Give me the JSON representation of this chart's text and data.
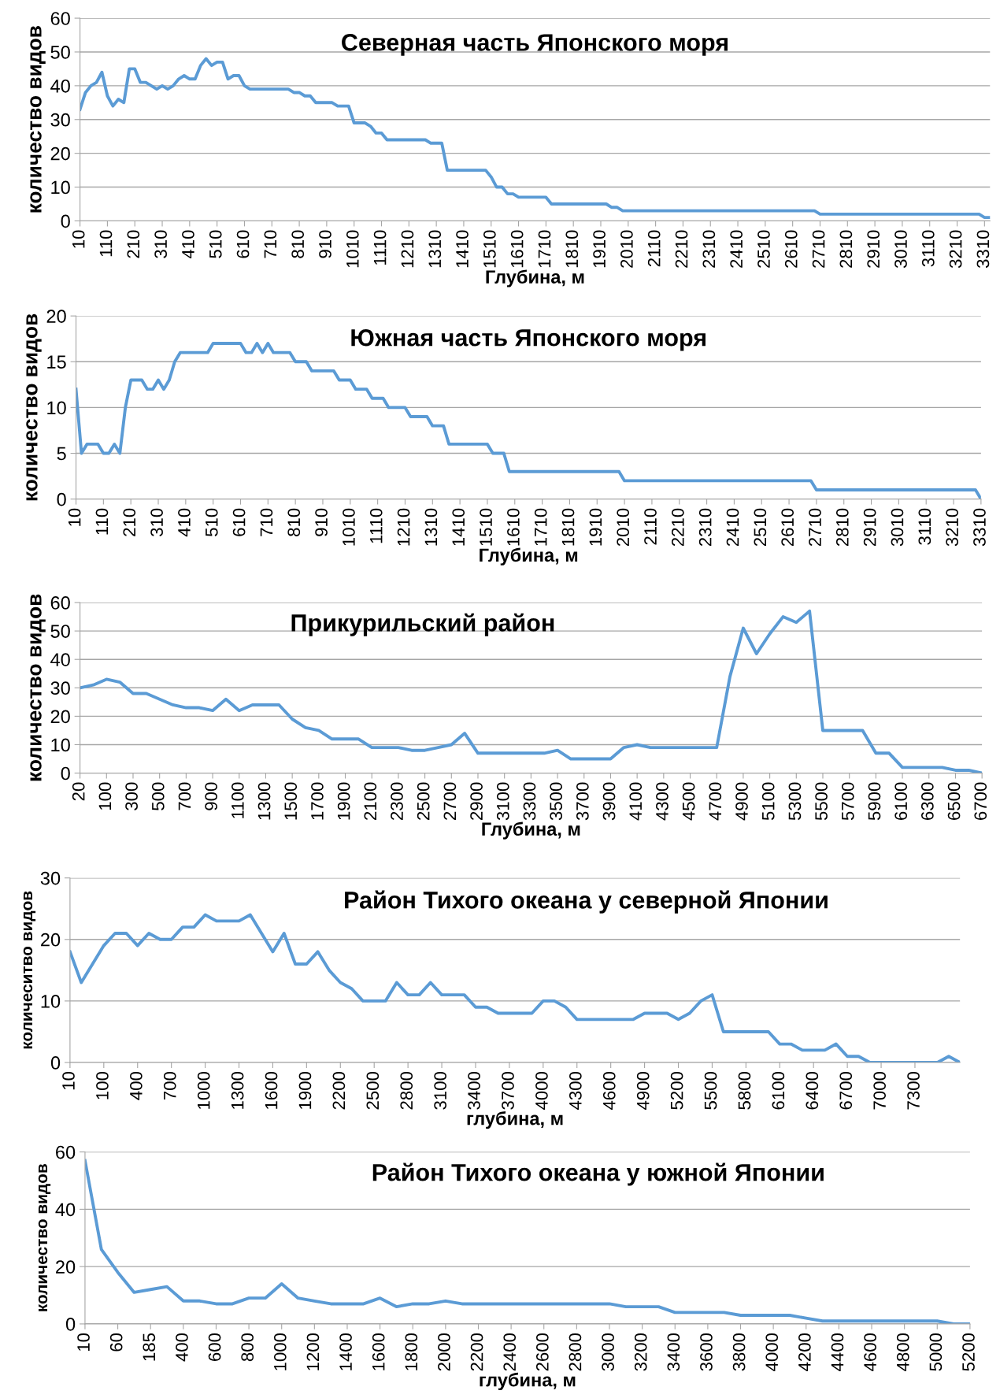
{
  "chart_data": [
    {
      "type": "line",
      "title": "Северная часть Японского моря",
      "xlabel": "Глубина, м",
      "ylabel": "количество видов",
      "ylim": [
        0,
        60
      ],
      "yticks": [
        0,
        10,
        20,
        30,
        40,
        50,
        60
      ],
      "grid": "y",
      "marker": "none",
      "line_style": "solid",
      "categories": [
        "10",
        null,
        null,
        null,
        null,
        "110",
        null,
        null,
        null,
        null,
        "210",
        null,
        null,
        null,
        null,
        "310",
        null,
        null,
        null,
        null,
        "410",
        null,
        null,
        null,
        null,
        "510",
        null,
        null,
        null,
        null,
        "610",
        null,
        null,
        null,
        null,
        "710",
        null,
        null,
        null,
        null,
        "810",
        null,
        null,
        null,
        null,
        "910",
        null,
        null,
        null,
        null,
        "1010",
        null,
        null,
        null,
        null,
        "1110",
        null,
        null,
        null,
        null,
        "1210",
        null,
        null,
        null,
        null,
        "1310",
        null,
        null,
        null,
        null,
        "1410",
        null,
        null,
        null,
        null,
        "1510",
        null,
        null,
        null,
        null,
        "1610",
        null,
        null,
        null,
        null,
        "1710",
        null,
        null,
        null,
        null,
        "1810",
        null,
        null,
        null,
        null,
        "1910",
        null,
        null,
        null,
        null,
        "2010",
        null,
        null,
        null,
        null,
        "2110",
        null,
        null,
        null,
        null,
        "2210",
        null,
        null,
        null,
        null,
        "2310",
        null,
        null,
        null,
        null,
        "2410",
        null,
        null,
        null,
        null,
        "2510",
        null,
        null,
        null,
        null,
        "2610",
        null,
        null,
        null,
        null,
        "2710",
        null,
        null,
        null,
        null,
        "2810",
        null,
        null,
        null,
        null,
        "2910",
        null,
        null,
        null,
        null,
        "3010",
        null,
        null,
        null,
        null,
        "3110",
        null,
        null,
        null,
        null,
        "3210",
        null,
        null,
        null,
        null,
        "3310",
        null
      ],
      "series": [
        {
          "color": "#5b9bd5",
          "values": [
            33,
            38,
            40,
            41,
            44,
            37,
            34,
            36,
            35,
            45,
            45,
            41,
            41,
            40,
            39,
            40,
            39,
            40,
            42,
            43,
            42,
            42,
            46,
            48,
            46,
            47,
            47,
            42,
            43,
            43,
            40,
            39,
            39,
            39,
            39,
            39,
            39,
            39,
            39,
            38,
            38,
            37,
            37,
            35,
            35,
            35,
            35,
            34,
            34,
            34,
            29,
            29,
            29,
            28,
            26,
            26,
            24,
            24,
            24,
            24,
            24,
            24,
            24,
            24,
            23,
            23,
            23,
            15,
            15,
            15,
            15,
            15,
            15,
            15,
            15,
            13,
            10,
            10,
            8,
            8,
            7,
            7,
            7,
            7,
            7,
            7,
            5,
            5,
            5,
            5,
            5,
            5,
            5,
            5,
            5,
            5,
            5,
            4,
            4,
            3,
            3,
            3,
            3,
            3,
            3,
            3,
            3,
            3,
            3,
            3,
            3,
            3,
            3,
            3,
            3,
            3,
            3,
            3,
            3,
            3,
            3,
            3,
            3,
            3,
            3,
            3,
            3,
            3,
            3,
            3,
            3,
            3,
            3,
            3,
            3,
            2,
            2,
            2,
            2,
            2,
            2,
            2,
            2,
            2,
            2,
            2,
            2,
            2,
            2,
            2,
            2,
            2,
            2,
            2,
            2,
            2,
            2,
            2,
            2,
            2,
            2,
            2,
            2,
            2,
            2,
            1,
            1
          ]
        }
      ]
    },
    {
      "type": "line",
      "title": "Южная часть Японского моря",
      "xlabel": "Глубина, м",
      "ylabel": "количество видов",
      "ylim": [
        0,
        20
      ],
      "yticks": [
        0,
        5,
        10,
        15,
        20
      ],
      "grid": "y",
      "marker": "none",
      "line_style": "solid",
      "categories": [
        "10",
        null,
        null,
        null,
        null,
        "110",
        null,
        null,
        null,
        null,
        "210",
        null,
        null,
        null,
        null,
        "310",
        null,
        null,
        null,
        null,
        "410",
        null,
        null,
        null,
        null,
        "510",
        null,
        null,
        null,
        null,
        "610",
        null,
        null,
        null,
        null,
        "710",
        null,
        null,
        null,
        null,
        "810",
        null,
        null,
        null,
        null,
        "910",
        null,
        null,
        null,
        null,
        "1010",
        null,
        null,
        null,
        null,
        "1110",
        null,
        null,
        null,
        null,
        "1210",
        null,
        null,
        null,
        null,
        "1310",
        null,
        null,
        null,
        null,
        "1410",
        null,
        null,
        null,
        null,
        "1510",
        null,
        null,
        null,
        null,
        "1610",
        null,
        null,
        null,
        null,
        "1710",
        null,
        null,
        null,
        null,
        "1810",
        null,
        null,
        null,
        null,
        "1910",
        null,
        null,
        null,
        null,
        "2010",
        null,
        null,
        null,
        null,
        "2110",
        null,
        null,
        null,
        null,
        "2210",
        null,
        null,
        null,
        null,
        "2310",
        null,
        null,
        null,
        null,
        "2410",
        null,
        null,
        null,
        null,
        "2510",
        null,
        null,
        null,
        null,
        "2610",
        null,
        null,
        null,
        null,
        "2710",
        null,
        null,
        null,
        null,
        "2810",
        null,
        null,
        null,
        null,
        "2910",
        null,
        null,
        null,
        null,
        "3010",
        null,
        null,
        null,
        null,
        "3110",
        null,
        null,
        null,
        null,
        "3210",
        null,
        null,
        null,
        null,
        "3310"
      ],
      "series": [
        {
          "color": "#5b9bd5",
          "values": [
            12,
            5,
            6,
            6,
            6,
            5,
            5,
            6,
            5,
            10,
            13,
            13,
            13,
            12,
            12,
            13,
            12,
            13,
            15,
            16,
            16,
            16,
            16,
            16,
            16,
            17,
            17,
            17,
            17,
            17,
            17,
            16,
            16,
            17,
            16,
            17,
            16,
            16,
            16,
            16,
            15,
            15,
            15,
            14,
            14,
            14,
            14,
            14,
            13,
            13,
            13,
            12,
            12,
            12,
            11,
            11,
            11,
            10,
            10,
            10,
            10,
            9,
            9,
            9,
            9,
            8,
            8,
            8,
            6,
            6,
            6,
            6,
            6,
            6,
            6,
            6,
            5,
            5,
            5,
            3,
            3,
            3,
            3,
            3,
            3,
            3,
            3,
            3,
            3,
            3,
            3,
            3,
            3,
            3,
            3,
            3,
            3,
            3,
            3,
            3,
            2,
            2,
            2,
            2,
            2,
            2,
            2,
            2,
            2,
            2,
            2,
            2,
            2,
            2,
            2,
            2,
            2,
            2,
            2,
            2,
            2,
            2,
            2,
            2,
            2,
            2,
            2,
            2,
            2,
            2,
            2,
            2,
            2,
            2,
            2,
            1,
            1,
            1,
            1,
            1,
            1,
            1,
            1,
            1,
            1,
            1,
            1,
            1,
            1,
            1,
            1,
            1,
            1,
            1,
            1,
            1,
            1,
            1,
            1,
            1,
            1,
            1,
            1,
            1,
            1,
            0
          ]
        }
      ]
    },
    {
      "type": "line",
      "title": "Прикурильский район",
      "xlabel": "Глубина, м",
      "ylabel": "количество видов",
      "ylim": [
        0,
        60
      ],
      "yticks": [
        0,
        10,
        20,
        30,
        40,
        50,
        60
      ],
      "grid": "y",
      "marker": "none",
      "line_style": "solid",
      "categories": [
        "20",
        null,
        "100",
        null,
        "300",
        null,
        "500",
        null,
        "700",
        null,
        "900",
        null,
        "1100",
        null,
        "1300",
        null,
        "1500",
        null,
        "1700",
        null,
        "1900",
        null,
        "2100",
        null,
        "2300",
        null,
        "2500",
        null,
        "2700",
        null,
        "2900",
        null,
        "3100",
        null,
        "3300",
        null,
        "3500",
        null,
        "3700",
        null,
        "3900",
        null,
        "4100",
        null,
        "4300",
        null,
        "4500",
        null,
        "4700",
        null,
        "4900",
        null,
        "5100",
        null,
        "5300",
        null,
        "5500",
        null,
        "5700",
        null,
        "5900",
        null,
        "6100",
        null,
        "6300",
        null,
        "6500",
        null,
        "6700"
      ],
      "series": [
        {
          "color": "#5b9bd5",
          "values": [
            30,
            31,
            33,
            32,
            28,
            28,
            26,
            24,
            23,
            23,
            22,
            26,
            22,
            24,
            24,
            24,
            19,
            16,
            15,
            12,
            12,
            12,
            9,
            9,
            9,
            8,
            8,
            9,
            10,
            14,
            7,
            7,
            7,
            7,
            7,
            7,
            8,
            5,
            5,
            5,
            5,
            9,
            10,
            9,
            9,
            9,
            9,
            9,
            9,
            34,
            51,
            42,
            49,
            55,
            53,
            57,
            15,
            15,
            15,
            15,
            7,
            7,
            2,
            2,
            2,
            2,
            1,
            1,
            0
          ]
        }
      ]
    },
    {
      "type": "line",
      "title": "Район Тихого океана у северной Японии",
      "xlabel": "глубина, м",
      "ylabel": "количеситво видов",
      "ylim": [
        0,
        30
      ],
      "yticks": [
        0,
        10,
        20,
        30
      ],
      "grid": "y",
      "marker": "none",
      "line_style": "solid",
      "categories": [
        "10",
        null,
        null,
        "100",
        null,
        null,
        "400",
        null,
        null,
        "700",
        null,
        null,
        "1000",
        null,
        null,
        "1300",
        null,
        null,
        "1600",
        null,
        null,
        "1900",
        null,
        null,
        "2200",
        null,
        null,
        "2500",
        null,
        null,
        "2800",
        null,
        null,
        "3100",
        null,
        null,
        "3400",
        null,
        null,
        "3700",
        null,
        null,
        "4000",
        null,
        null,
        "4300",
        null,
        null,
        "4600",
        null,
        null,
        "4900",
        null,
        null,
        "5200",
        null,
        null,
        "5500",
        null,
        null,
        "5800",
        null,
        null,
        "6100",
        null,
        null,
        "6400",
        null,
        null,
        "6700",
        null,
        null,
        "7000",
        null,
        null,
        "7300",
        null,
        null,
        null,
        null
      ],
      "series": [
        {
          "color": "#5b9bd5",
          "values": [
            18,
            13,
            16,
            19,
            21,
            21,
            19,
            21,
            20,
            20,
            22,
            22,
            24,
            23,
            23,
            23,
            24,
            21,
            18,
            21,
            16,
            16,
            18,
            15,
            13,
            12,
            10,
            10,
            10,
            13,
            11,
            11,
            13,
            11,
            11,
            11,
            9,
            9,
            8,
            8,
            8,
            8,
            10,
            10,
            9,
            7,
            7,
            7,
            7,
            7,
            7,
            8,
            8,
            8,
            7,
            8,
            10,
            11,
            5,
            5,
            5,
            5,
            5,
            3,
            3,
            2,
            2,
            2,
            3,
            1,
            1,
            0,
            0,
            0,
            0,
            0,
            0,
            0,
            1,
            0
          ]
        }
      ]
    },
    {
      "type": "line",
      "title": "Район Тихого океана у южной Японии",
      "xlabel": "глубина, м",
      "ylabel": "количество видов",
      "ylim": [
        0,
        60
      ],
      "yticks": [
        0,
        20,
        40,
        60
      ],
      "grid": "y",
      "marker": "none",
      "line_style": "solid",
      "categories": [
        "10",
        null,
        "60",
        null,
        "185",
        null,
        "400",
        null,
        "600",
        null,
        "800",
        null,
        "1000",
        null,
        "1200",
        null,
        "1400",
        null,
        "1600",
        null,
        "1800",
        null,
        "2000",
        null,
        "2200",
        null,
        "2400",
        null,
        "2600",
        null,
        "2800",
        null,
        "3000",
        null,
        "3200",
        null,
        "3400",
        null,
        "3600",
        null,
        "3800",
        null,
        "4000",
        null,
        "4200",
        null,
        "4400",
        null,
        "4600",
        null,
        "4800",
        null,
        "5000",
        null,
        "5200"
      ],
      "series": [
        {
          "color": "#5b9bd5",
          "values": [
            57,
            26,
            18,
            11,
            12,
            13,
            8,
            8,
            7,
            7,
            9,
            9,
            14,
            9,
            8,
            7,
            7,
            7,
            9,
            6,
            7,
            7,
            8,
            7,
            7,
            7,
            7,
            7,
            7,
            7,
            7,
            7,
            7,
            6,
            6,
            6,
            4,
            4,
            4,
            4,
            3,
            3,
            3,
            3,
            2,
            1,
            1,
            1,
            1,
            1,
            1,
            1,
            1,
            0,
            0
          ]
        }
      ]
    }
  ]
}
